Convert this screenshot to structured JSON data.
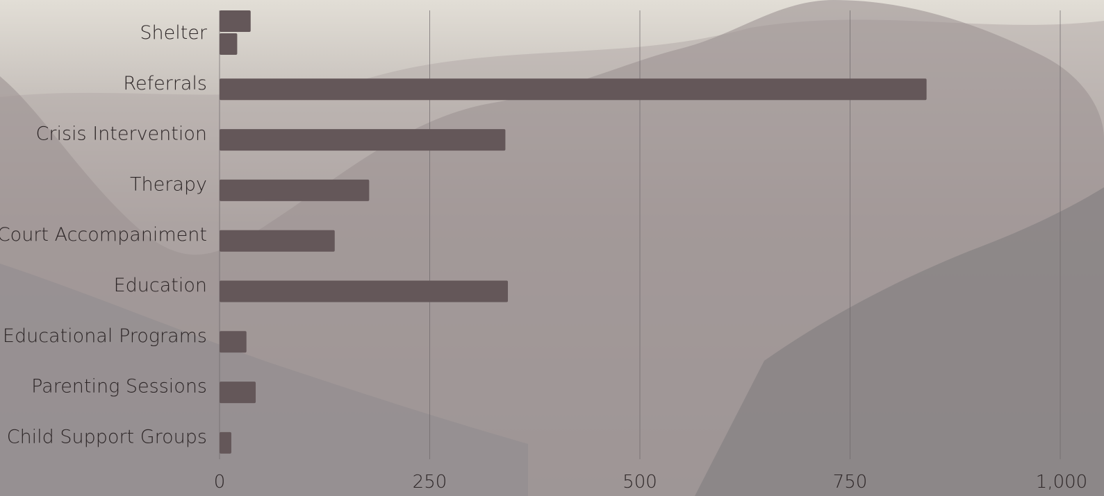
{
  "chart_data": {
    "type": "bar",
    "orientation": "horizontal",
    "title": "",
    "xlabel": "",
    "ylabel": "",
    "categories": [
      "Shelter",
      "Referrals",
      "Crisis Intervention",
      "Therapy",
      "Court Accompaniment",
      "Education",
      "Educational Programs",
      "Parenting Sessions",
      "Child Support Groups"
    ],
    "series": [
      {
        "values": [
          37,
          841,
          340,
          178,
          137,
          343,
          32,
          43,
          14
        ]
      },
      {
        "values": [
          21,
          null,
          null,
          null,
          null,
          null,
          null,
          null,
          null
        ]
      }
    ],
    "xlim": [
      0,
      1000
    ],
    "xticks": [
      0,
      250,
      500,
      750,
      1000
    ],
    "xtick_labels": [
      "0",
      "250",
      "500",
      "750",
      "1,000"
    ],
    "grid": true,
    "legend": "none",
    "colors": {
      "bar": "#645759",
      "text": "#2c2526",
      "grid": "#6d676a",
      "background_top": "#e2ded6",
      "background_mid": "#a59c9b",
      "background_bottom": "#8a878a"
    }
  }
}
